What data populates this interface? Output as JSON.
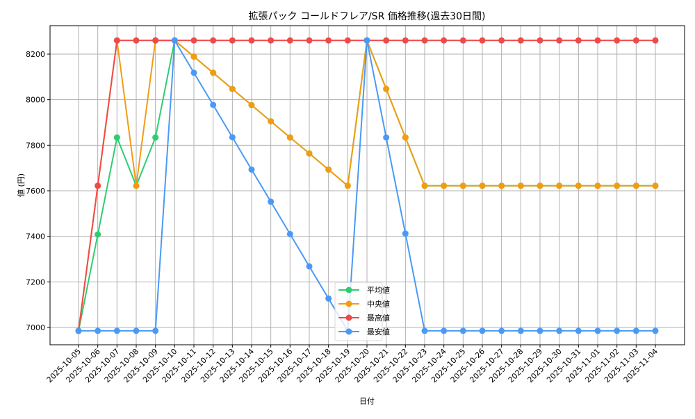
{
  "chart_data": {
    "type": "line",
    "title": "拡張パック コールドフレア/SR 価格推移(過去30日間)",
    "xlabel": "日付",
    "ylabel": "値 (円)",
    "ylim": [
      6925,
      8320
    ],
    "yticks": [
      7000,
      7200,
      7400,
      7600,
      7800,
      8000,
      8200
    ],
    "grid": true,
    "legend_position": "lower center",
    "categories": [
      "2025-10-05",
      "2025-10-06",
      "2025-10-07",
      "2025-10-08",
      "2025-10-09",
      "2025-10-10",
      "2025-10-11",
      "2025-10-12",
      "2025-10-13",
      "2025-10-14",
      "2025-10-15",
      "2025-10-16",
      "2025-10-17",
      "2025-10-18",
      "2025-10-19",
      "2025-10-20",
      "2025-10-21",
      "2025-10-22",
      "2025-10-23",
      "2025-10-24",
      "2025-10-25",
      "2025-10-26",
      "2025-10-27",
      "2025-10-28",
      "2025-10-29",
      "2025-10-30",
      "2025-10-31",
      "2025-11-01",
      "2025-11-02",
      "2025-11-03",
      "2025-11-04"
    ],
    "series": [
      {
        "name": "平均値",
        "color": "#2ecc71",
        "values": [
          6985,
          7408,
          7834,
          7622,
          7834,
          8260,
          8189,
          8118,
          8047,
          7976,
          7905,
          7834,
          7764,
          7693,
          7622,
          8260,
          8047,
          7834,
          7622,
          7622,
          7622,
          7622,
          7622,
          7622,
          7622,
          7622,
          7622,
          7622,
          7622,
          7622,
          7622
        ]
      },
      {
        "name": "中央値",
        "color": "#f39c12",
        "values": [
          6985,
          7622,
          8260,
          7622,
          8260,
          8260,
          8189,
          8118,
          8047,
          7976,
          7905,
          7834,
          7764,
          7693,
          7622,
          8260,
          8047,
          7834,
          7622,
          7622,
          7622,
          7622,
          7622,
          7622,
          7622,
          7622,
          7622,
          7622,
          7622,
          7622,
          7622
        ]
      },
      {
        "name": "最高値",
        "color": "#ef4a4a",
        "values": [
          6985,
          7622,
          8260,
          8260,
          8260,
          8260,
          8260,
          8260,
          8260,
          8260,
          8260,
          8260,
          8260,
          8260,
          8260,
          8260,
          8260,
          8260,
          8260,
          8260,
          8260,
          8260,
          8260,
          8260,
          8260,
          8260,
          8260,
          8260,
          8260,
          8260,
          8260
        ]
      },
      {
        "name": "最安値",
        "color": "#4a9af5",
        "values": [
          6985,
          6985,
          6985,
          6985,
          6985,
          8260,
          8118,
          7977,
          7835,
          7693,
          7552,
          7410,
          7268,
          7127,
          6985,
          8260,
          7834,
          7412,
          6985,
          6985,
          6985,
          6985,
          6985,
          6985,
          6985,
          6985,
          6985,
          6985,
          6985,
          6985,
          6985
        ]
      }
    ]
  },
  "style": {
    "grid_color": "#b0b0b0",
    "axis_color": "#000000"
  }
}
